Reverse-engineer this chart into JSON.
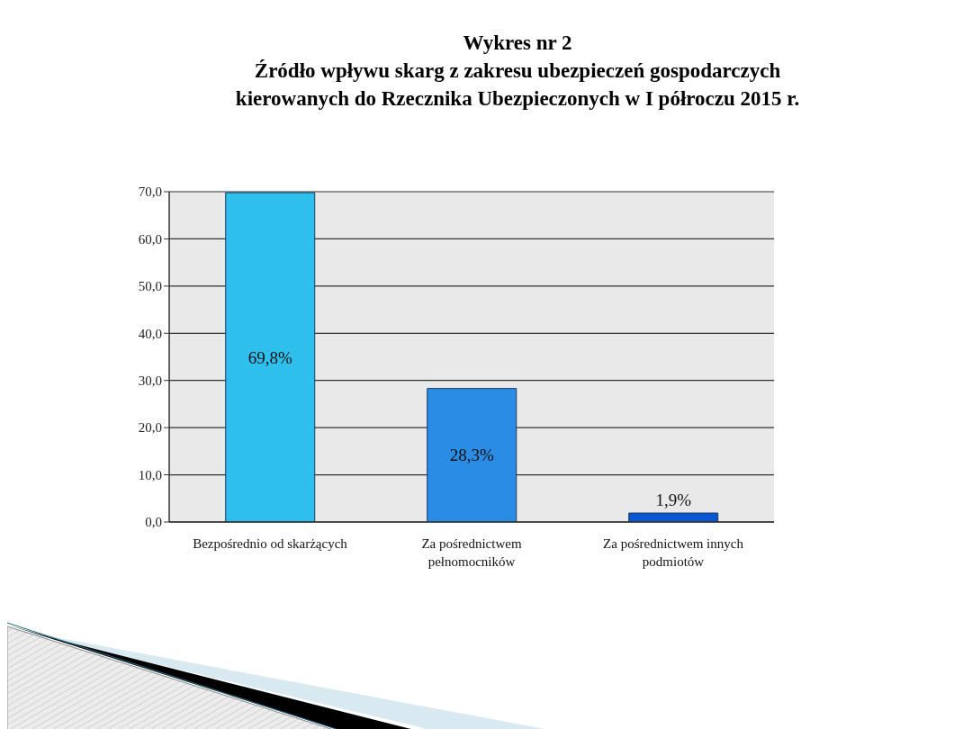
{
  "chart_data": {
    "type": "bar",
    "title": "Wykres nr 2\nŹródło wpływu skarg z zakresu ubezpieczeń gospodarczych\nkierowanych do Rzecznika Ubezpieczonych w I półroczu 2015 r.",
    "categories": [
      "Bezpośrednio od skarżących",
      "Za pośrednictwem pełnomocników",
      "Za pośrednictwem innych podmiotów"
    ],
    "values": [
      69.8,
      28.3,
      1.9
    ],
    "colors": [
      "#2ebfec",
      "#2a8ce4",
      "#0a55d4"
    ],
    "value_labels": [
      "69,8%",
      "28,3%",
      "1,9%"
    ],
    "ylim": [
      0,
      70
    ],
    "yticks": [
      {
        "value": 0,
        "label": "0,0"
      },
      {
        "value": 10,
        "label": "10,0"
      },
      {
        "value": 20,
        "label": "20,0"
      },
      {
        "value": 30,
        "label": "30,0"
      },
      {
        "value": 40,
        "label": "40,0"
      },
      {
        "value": 50,
        "label": "50,0"
      },
      {
        "value": 60,
        "label": "60,0"
      },
      {
        "value": 70,
        "label": "70,0"
      }
    ],
    "grid": "y"
  }
}
